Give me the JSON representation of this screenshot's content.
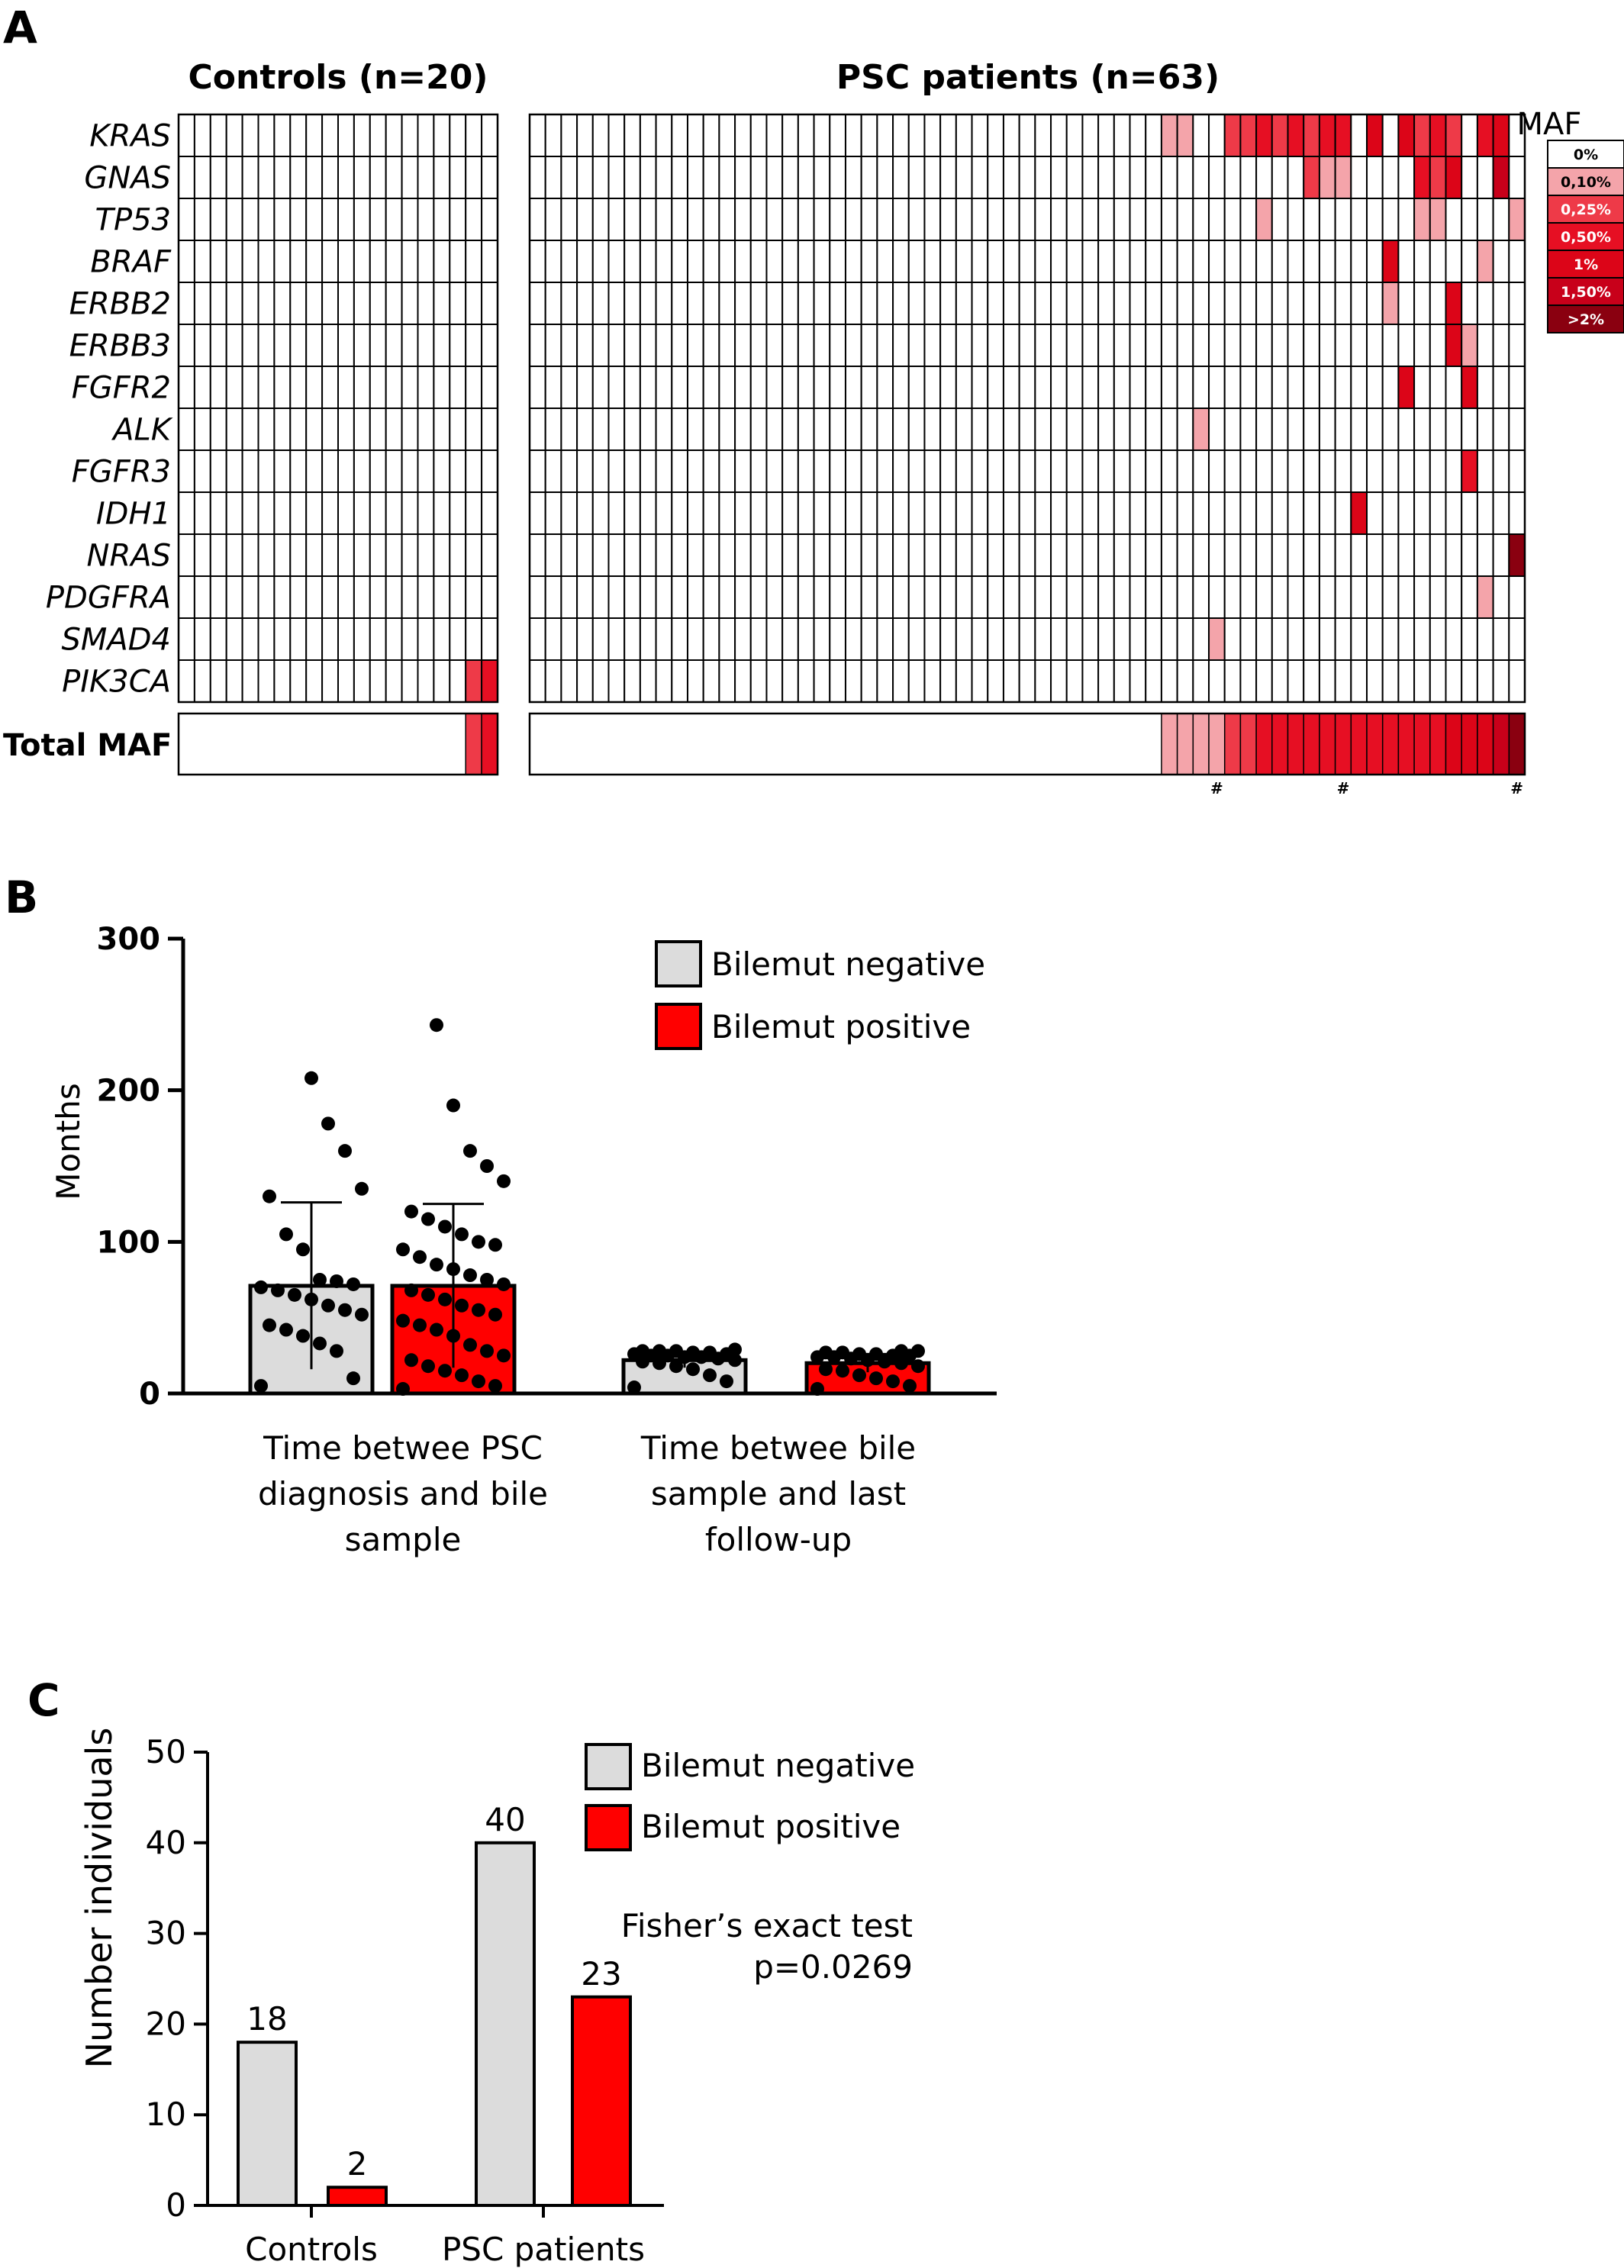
{
  "chart_data": [
    {
      "panel": "A",
      "type": "heatmap",
      "groups": [
        {
          "label": "Controls (n=20)",
          "n": 20
        },
        {
          "label": "PSC patients (n=63)",
          "n": 63
        }
      ],
      "genes": [
        "KRAS",
        "GNAS",
        "TP53",
        "BRAF",
        "ERBB2",
        "ERBB3",
        "FGFR2",
        "ALK",
        "FGFR3",
        "IDH1",
        "NRAS",
        "PDGFRA",
        "SMAD4",
        "PIK3CA"
      ],
      "total_row_label": "Total MAF",
      "legend": {
        "title": "MAF",
        "levels": [
          "0%",
          "0,10%",
          "0,25%",
          "0,50%",
          "1%",
          "1,50%",
          ">2%"
        ],
        "colors": [
          "#ffffff",
          "#f4a4aa",
          "#ee3a48",
          "#e60f23",
          "#dc0518",
          "#c8001a",
          "#8a0010"
        ]
      },
      "cells": {
        "controls": [
          {
            "gene": "PIK3CA",
            "col": 18,
            "level": 2
          },
          {
            "gene": "PIK3CA",
            "col": 19,
            "level": 3
          }
        ],
        "psc": [
          {
            "gene": "KRAS",
            "col": 40,
            "level": 1
          },
          {
            "gene": "KRAS",
            "col": 41,
            "level": 1
          },
          {
            "gene": "KRAS",
            "col": 44,
            "level": 2
          },
          {
            "gene": "KRAS",
            "col": 45,
            "level": 2
          },
          {
            "gene": "KRAS",
            "col": 46,
            "level": 3
          },
          {
            "gene": "KRAS",
            "col": 47,
            "level": 2
          },
          {
            "gene": "KRAS",
            "col": 48,
            "level": 3
          },
          {
            "gene": "KRAS",
            "col": 49,
            "level": 2
          },
          {
            "gene": "KRAS",
            "col": 50,
            "level": 3
          },
          {
            "gene": "KRAS",
            "col": 51,
            "level": 3
          },
          {
            "gene": "KRAS",
            "col": 53,
            "level": 4
          },
          {
            "gene": "KRAS",
            "col": 55,
            "level": 4
          },
          {
            "gene": "KRAS",
            "col": 56,
            "level": 2
          },
          {
            "gene": "KRAS",
            "col": 57,
            "level": 3
          },
          {
            "gene": "KRAS",
            "col": 58,
            "level": 2
          },
          {
            "gene": "KRAS",
            "col": 60,
            "level": 3
          },
          {
            "gene": "KRAS",
            "col": 61,
            "level": 4
          },
          {
            "gene": "GNAS",
            "col": 49,
            "level": 2
          },
          {
            "gene": "GNAS",
            "col": 50,
            "level": 1
          },
          {
            "gene": "GNAS",
            "col": 51,
            "level": 1
          },
          {
            "gene": "GNAS",
            "col": 56,
            "level": 3
          },
          {
            "gene": "GNAS",
            "col": 57,
            "level": 2
          },
          {
            "gene": "GNAS",
            "col": 58,
            "level": 4
          },
          {
            "gene": "GNAS",
            "col": 61,
            "level": 5
          },
          {
            "gene": "TP53",
            "col": 46,
            "level": 1
          },
          {
            "gene": "TP53",
            "col": 56,
            "level": 1
          },
          {
            "gene": "TP53",
            "col": 57,
            "level": 1
          },
          {
            "gene": "TP53",
            "col": 62,
            "level": 1
          },
          {
            "gene": "BRAF",
            "col": 54,
            "level": 4
          },
          {
            "gene": "BRAF",
            "col": 60,
            "level": 1
          },
          {
            "gene": "ERBB2",
            "col": 54,
            "level": 1
          },
          {
            "gene": "ERBB2",
            "col": 58,
            "level": 4
          },
          {
            "gene": "ERBB3",
            "col": 58,
            "level": 4
          },
          {
            "gene": "ERBB3",
            "col": 59,
            "level": 1
          },
          {
            "gene": "FGFR2",
            "col": 55,
            "level": 4
          },
          {
            "gene": "FGFR2",
            "col": 59,
            "level": 4
          },
          {
            "gene": "ALK",
            "col": 42,
            "level": 1
          },
          {
            "gene": "FGFR3",
            "col": 59,
            "level": 3
          },
          {
            "gene": "IDH1",
            "col": 52,
            "level": 4
          },
          {
            "gene": "NRAS",
            "col": 62,
            "level": 6
          },
          {
            "gene": "PDGFRA",
            "col": 60,
            "level": 1
          },
          {
            "gene": "SMAD4",
            "col": 43,
            "level": 1
          }
        ]
      },
      "total_maf": {
        "controls": {
          "first_colored_col": 18,
          "levels": [
            2,
            3
          ]
        },
        "psc": {
          "first_colored_col": 40,
          "levels": [
            1,
            1,
            1,
            1,
            2,
            2,
            3,
            3,
            3,
            3,
            3,
            3,
            3,
            3,
            3,
            3,
            3,
            3,
            4,
            4,
            4,
            5,
            6
          ]
        }
      },
      "markers": {
        "symbol": "#",
        "psc_cols": [
          43,
          51,
          62
        ]
      }
    },
    {
      "panel": "B",
      "type": "bar",
      "ylabel": "Months",
      "ylim": [
        0,
        300
      ],
      "yticks": [
        0,
        100,
        200,
        300
      ],
      "categories": [
        "Time betwee PSC diagnosis and bile sample",
        "Time betwee bile sample and last follow-up"
      ],
      "category_lines": [
        [
          "Time betwee PSC",
          "diagnosis and bile",
          "sample"
        ],
        [
          "Time betwee bile",
          "sample and last",
          "follow-up"
        ]
      ],
      "series": [
        {
          "name": "Bilemut negative",
          "color": "#dcdcdc",
          "values": [
            71,
            22
          ],
          "sd": [
            55,
            5
          ],
          "points": [
            [
              5,
              10,
              28,
              33,
              38,
              42,
              45,
              52,
              55,
              58,
              62,
              65,
              68,
              70,
              72,
              74,
              75,
              95,
              105,
              130,
              135,
              160,
              178,
              208
            ],
            [
              4,
              8,
              12,
              16,
              18,
              20,
              21,
              22,
              23,
              24,
              24,
              25,
              25,
              26,
              26,
              27,
              27,
              28,
              28,
              28,
              29
            ]
          ]
        },
        {
          "name": "Bilemut positive",
          "color": "#ff0000",
          "values": [
            71,
            20
          ],
          "sd": [
            54,
            6
          ],
          "points": [
            [
              3,
              5,
              8,
              12,
              15,
              18,
              22,
              25,
              28,
              32,
              38,
              42,
              45,
              48,
              52,
              55,
              58,
              62,
              65,
              68,
              72,
              75,
              78,
              82,
              85,
              90,
              95,
              98,
              100,
              105,
              110,
              115,
              120,
              140,
              150,
              160,
              190,
              243
            ],
            [
              3,
              5,
              8,
              10,
              12,
              15,
              16,
              18,
              20,
              21,
              22,
              23,
              24,
              24,
              25,
              25,
              26,
              26,
              27,
              27,
              28,
              28
            ]
          ]
        }
      ]
    },
    {
      "panel": "C",
      "type": "bar",
      "ylabel": "Number individuals",
      "ylim": [
        0,
        50
      ],
      "yticks": [
        0,
        10,
        20,
        30,
        40,
        50
      ],
      "categories": [
        "Controls",
        "PSC patients"
      ],
      "series": [
        {
          "name": "Bilemut negative",
          "color": "#dcdcdc",
          "values": [
            18,
            40
          ]
        },
        {
          "name": "Bilemut positive",
          "color": "#ff0000",
          "values": [
            2,
            23
          ]
        }
      ],
      "annotation": [
        "Fisher’s exact test",
        "p=0.0269"
      ]
    }
  ]
}
